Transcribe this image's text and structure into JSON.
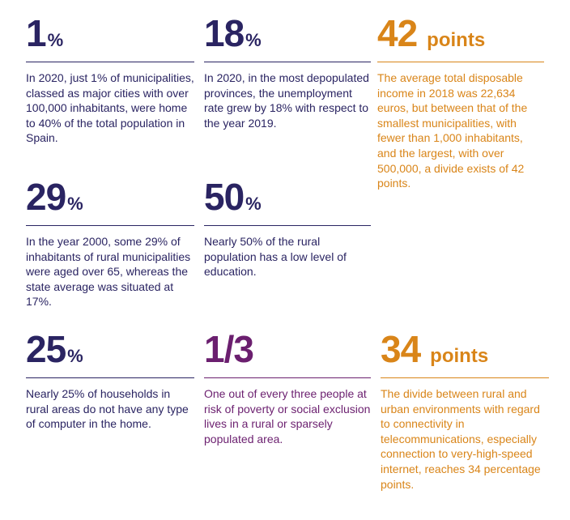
{
  "colors": {
    "navy": "#2a2462",
    "purple": "#6b1f6f",
    "orange": "#d98519"
  },
  "stats": [
    {
      "value": "1",
      "unit": "%",
      "text": "In 2020, just 1% of municipalities, classed as major cities with over 100,000 inhabitants, were home to 40% of the total population in Spain.",
      "color": "#2a2462"
    },
    {
      "value": "18",
      "unit": "%",
      "text": "In 2020, in the most depopulated provinces, the unemployment rate grew by 18% with respect to the year 2019.",
      "color": "#2a2462"
    },
    {
      "value": "42",
      "unit": "points",
      "text": "The average total disposable income in 2018 was 22,634 euros, but between that of the smallest municipalities, with fewer than 1,000 inhabitants, and the largest, with over 500,000, a divide exists of 42 points.",
      "color": "#d98519"
    },
    {
      "value": "29",
      "unit": "%",
      "text": "In the year 2000, some 29% of inhabitants of rural municipalities were aged over 65, whereas the state average was situated at 17%.",
      "color": "#2a2462"
    },
    {
      "value": "50",
      "unit": "%",
      "text": "Nearly 50% of the rural population has a low level of education.",
      "color": "#2a2462"
    },
    {
      "value": "25",
      "unit": "%",
      "text": "Nearly 25% of households in rural areas do not have any type of computer in the home.",
      "color": "#2a2462"
    },
    {
      "value": "1/3",
      "unit": "",
      "text": "One out of every three people at risk of poverty or social exclusion lives in a rural or sparsely populated area.",
      "color": "#6b1f6f"
    },
    {
      "value": "34",
      "unit": "points",
      "text": "The divide between rural and urban environments with regard to connectivity in telecommunications, especially connection to very-high-speed internet, reaches 34 percentage points.",
      "color": "#d98519"
    }
  ]
}
